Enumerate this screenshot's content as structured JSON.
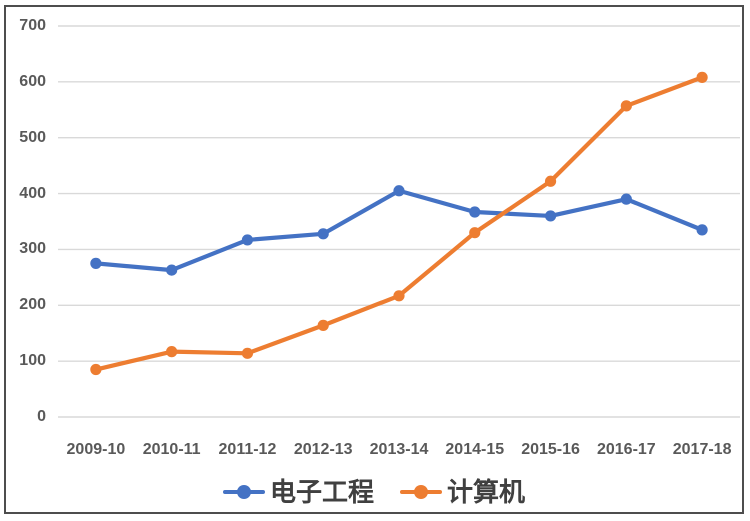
{
  "chart_data": {
    "type": "line",
    "title": "",
    "xlabel": "",
    "ylabel": "",
    "categories": [
      "2009-10",
      "2010-11",
      "2011-12",
      "2012-13",
      "2013-14",
      "2014-15",
      "2015-16",
      "2016-17",
      "2017-18"
    ],
    "series": [
      {
        "name": "电子工程",
        "color": "#4472C4",
        "values": [
          275,
          263,
          317,
          328,
          405,
          367,
          360,
          390,
          335
        ]
      },
      {
        "name": "计算机",
        "color": "#ED7D31",
        "values": [
          85,
          117,
          114,
          164,
          217,
          330,
          422,
          557,
          608
        ]
      }
    ],
    "ylim": [
      0,
      700
    ],
    "y_ticks": [
      0,
      100,
      200,
      300,
      400,
      500,
      600,
      700
    ],
    "grid": "horizontal",
    "gridline_color": "#D9D9D9",
    "axis_label_color": "#595959",
    "legend_position": "bottom",
    "legend_text_color": "#404040",
    "marker_style": "circle",
    "frame_border_color": "#4d4d4d"
  }
}
